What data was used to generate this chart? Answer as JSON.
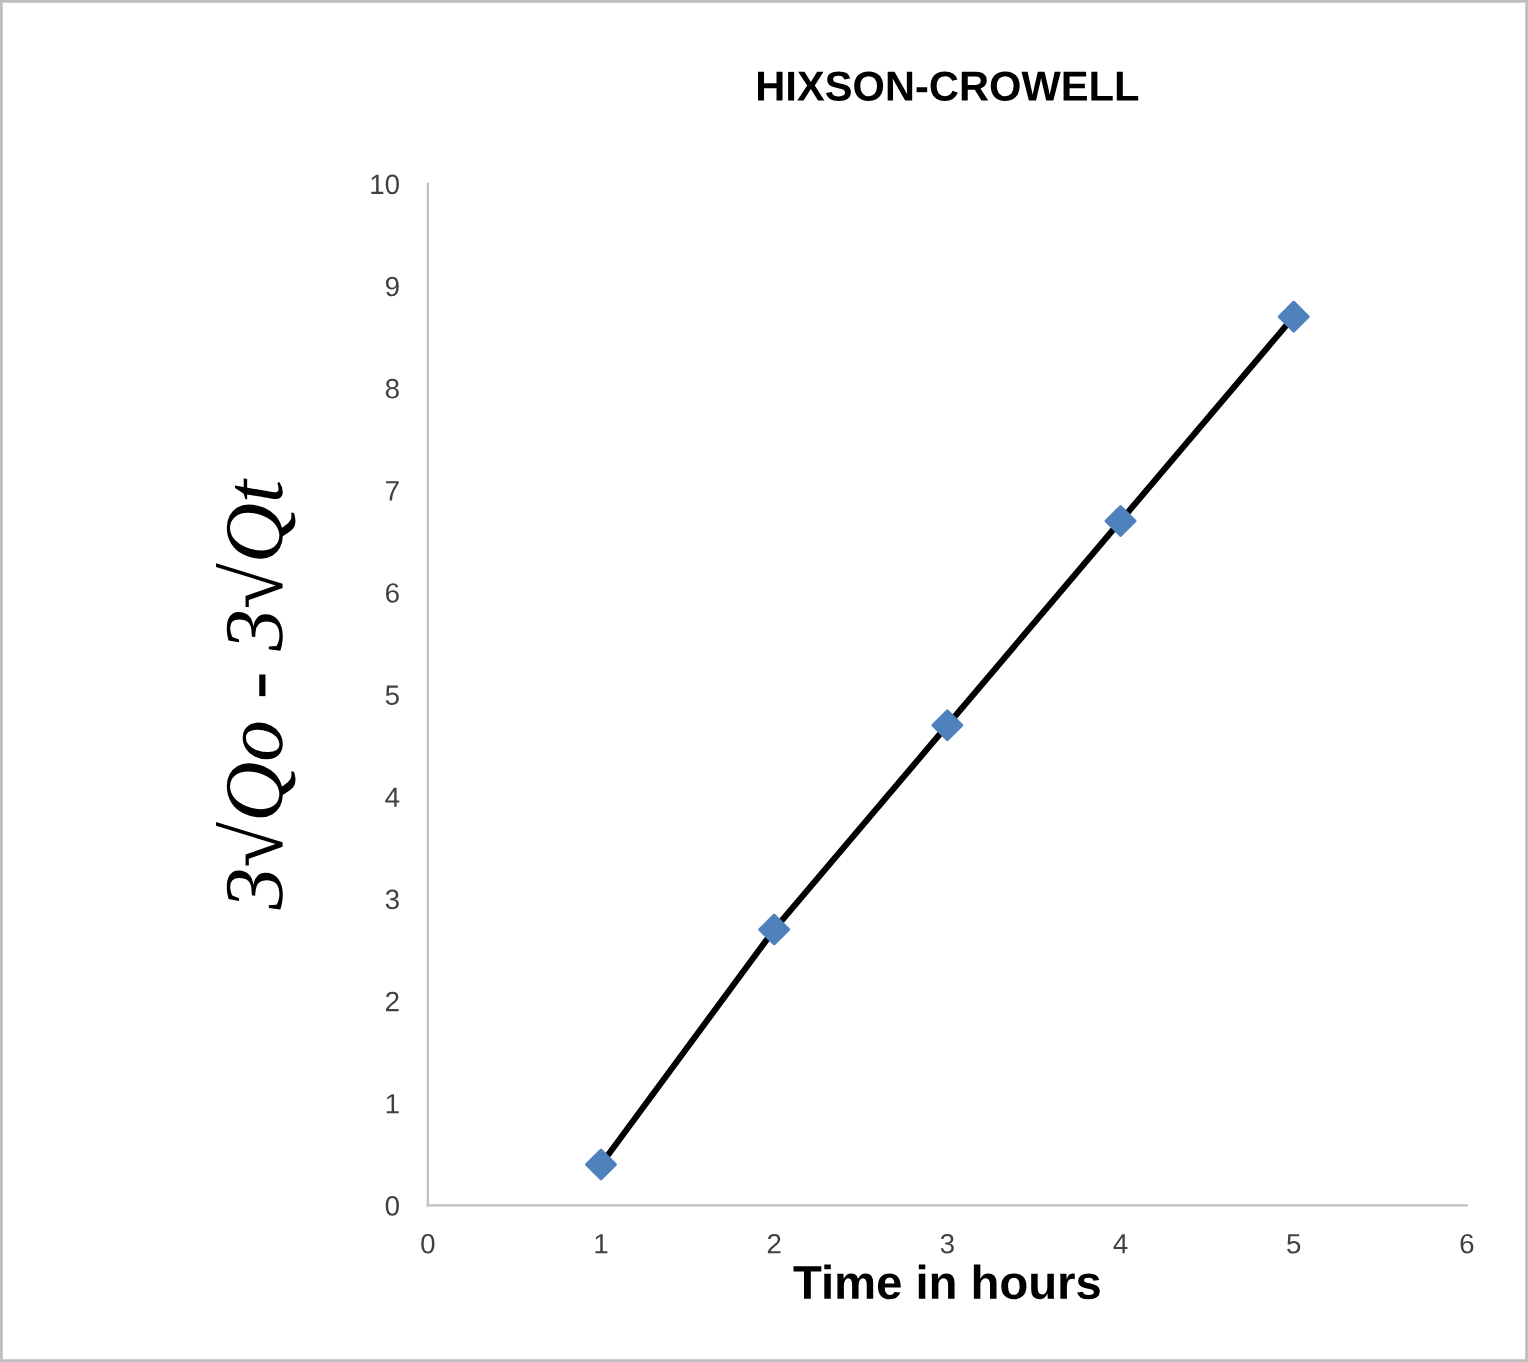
{
  "chart_data": {
    "type": "line",
    "title": "HIXSON-CROWELL",
    "xlabel": "Time in hours",
    "ylabel": "3√Qo - 3√Qt",
    "x": [
      1,
      2,
      3,
      4,
      5
    ],
    "series": [
      {
        "color": "#000000",
        "values": [
          0.4,
          2.7,
          4.7,
          6.7,
          8.7
        ]
      },
      {
        "type": "scatter",
        "color": "#4f81bd",
        "marker": "diamond",
        "values": [
          0.4,
          2.7,
          4.7,
          6.7,
          8.7
        ]
      }
    ],
    "xlim": [
      0,
      6
    ],
    "xticks": [
      0,
      1,
      2,
      3,
      4,
      5,
      6
    ],
    "ylim": [
      0,
      10
    ],
    "yticks": [
      0,
      1,
      2,
      3,
      4,
      5,
      6,
      7,
      8,
      9,
      10
    ],
    "grid": false,
    "legend": false
  }
}
